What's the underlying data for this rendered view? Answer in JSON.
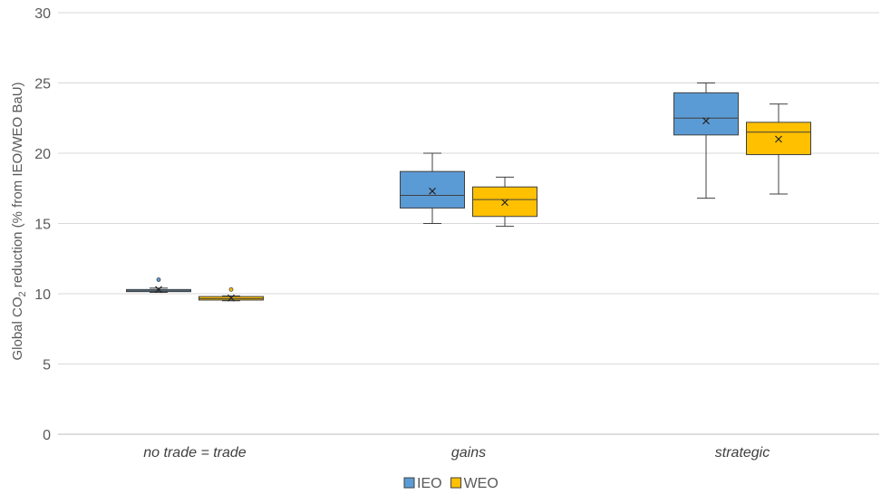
{
  "chart_data": {
    "type": "box",
    "title": "",
    "xlabel": "",
    "ylabel": {
      "prefix": "Global CO",
      "subscript": "2",
      "suffix": " reduction (% from IEO/WEO BaU)"
    },
    "ylim": [
      0,
      30
    ],
    "yticks": [
      "0",
      "5",
      "10",
      "15",
      "20",
      "25",
      "30"
    ],
    "grid": true,
    "legend_position": "bottom",
    "categories": [
      "no trade = trade",
      "gains",
      "strategic"
    ],
    "series": [
      {
        "name": "IEO",
        "color": "#5B9BD5",
        "boxes": [
          {
            "min": 10.1,
            "q1": 10.15,
            "median": 10.2,
            "q3": 10.3,
            "max": 10.4,
            "mean": 10.3,
            "outliers": [
              11.0
            ]
          },
          {
            "min": 15.0,
            "q1": 16.1,
            "median": 17.0,
            "q3": 18.7,
            "max": 20.0,
            "mean": 17.3,
            "outliers": []
          },
          {
            "min": 16.8,
            "q1": 21.3,
            "median": 22.5,
            "q3": 24.3,
            "max": 25.0,
            "mean": 22.3,
            "outliers": []
          }
        ]
      },
      {
        "name": "WEO",
        "color": "#FFC000",
        "boxes": [
          {
            "min": 9.5,
            "q1": 9.55,
            "median": 9.65,
            "q3": 9.8,
            "max": 9.85,
            "mean": 9.7,
            "outliers": [
              10.3
            ]
          },
          {
            "min": 14.8,
            "q1": 15.5,
            "median": 16.7,
            "q3": 17.6,
            "max": 18.3,
            "mean": 16.5,
            "outliers": []
          },
          {
            "min": 17.1,
            "q1": 19.9,
            "median": 21.5,
            "q3": 22.2,
            "max": 23.5,
            "mean": 21.0,
            "outliers": []
          }
        ]
      }
    ]
  }
}
